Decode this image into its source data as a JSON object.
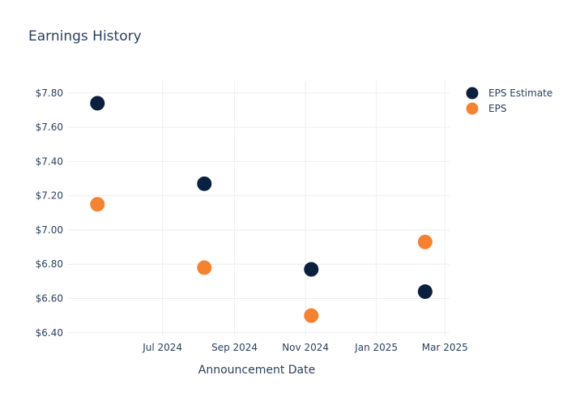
{
  "chart_data": {
    "type": "scatter",
    "title": "Earnings History",
    "xlabel": "Announcement Date",
    "ylabel": "",
    "x_ticks": [
      {
        "date": "2024-07-01",
        "label": "Jul 2024"
      },
      {
        "date": "2024-09-01",
        "label": "Sep 2024"
      },
      {
        "date": "2024-11-01",
        "label": "Nov 2024"
      },
      {
        "date": "2025-01-01",
        "label": "Jan 2025"
      },
      {
        "date": "2025-03-01",
        "label": "Mar 2025"
      }
    ],
    "y_ticks": [
      {
        "value": 6.4,
        "label": "$6.40"
      },
      {
        "value": 6.6,
        "label": "$6.60"
      },
      {
        "value": 6.8,
        "label": "$6.80"
      },
      {
        "value": 7.0,
        "label": "$7.00"
      },
      {
        "value": 7.2,
        "label": "$7.20"
      },
      {
        "value": 7.4,
        "label": "$7.40"
      },
      {
        "value": 7.6,
        "label": "$7.60"
      },
      {
        "value": 7.8,
        "label": "$7.80"
      }
    ],
    "xlim": [
      "2024-04-10",
      "2025-03-05"
    ],
    "ylim": [
      6.38,
      7.87
    ],
    "grid": true,
    "legend_position": "top-right",
    "series": [
      {
        "name": "EPS Estimate",
        "color": "#0b1f3f",
        "points": [
          {
            "x": "2024-05-06",
            "y": 7.74
          },
          {
            "x": "2024-08-06",
            "y": 7.27
          },
          {
            "x": "2024-11-06",
            "y": 6.77
          },
          {
            "x": "2025-02-12",
            "y": 6.64
          }
        ]
      },
      {
        "name": "EPS",
        "color": "#f58230",
        "points": [
          {
            "x": "2024-05-06",
            "y": 7.15
          },
          {
            "x": "2024-08-06",
            "y": 6.78
          },
          {
            "x": "2024-11-06",
            "y": 6.5
          },
          {
            "x": "2025-02-12",
            "y": 6.93
          }
        ]
      }
    ]
  }
}
